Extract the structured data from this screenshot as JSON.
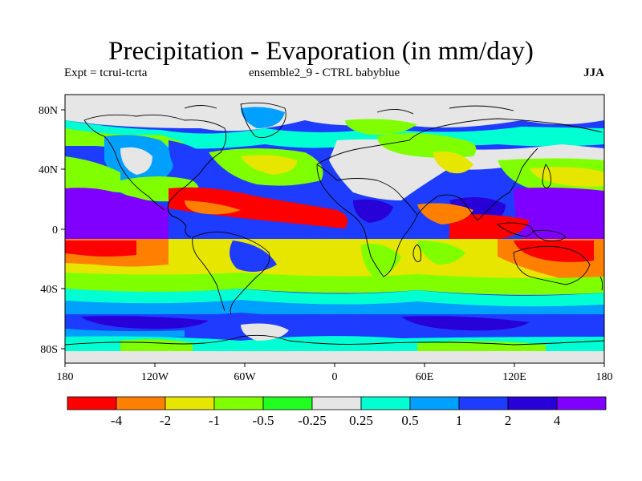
{
  "title": "Precipitation - Evaporation (in mm/day)",
  "subtitle_left": "Expt = tcrui-tcrta",
  "subtitle_center": "ensemble2_9 - CTRL babyblue",
  "subtitle_right": "JJA",
  "axes": {
    "lon_ticks": [
      "180",
      "120W",
      "60W",
      "0",
      "60E",
      "120E",
      "180"
    ],
    "lat_ticks": [
      "80N",
      "40N",
      "0",
      "40S",
      "80S"
    ]
  },
  "colorbar": {
    "colors": [
      "#ff0000",
      "#ff8000",
      "#e6e600",
      "#80ff00",
      "#20ff20",
      "#e6e6e6",
      "#00ffd2",
      "#00a0ff",
      "#1e3cff",
      "#2800d8",
      "#8000ff"
    ],
    "labels": [
      "-4",
      "-2",
      "-1",
      "-0.5",
      "-0.25",
      "0.25",
      "0.5",
      "1",
      "2",
      "4"
    ]
  }
}
